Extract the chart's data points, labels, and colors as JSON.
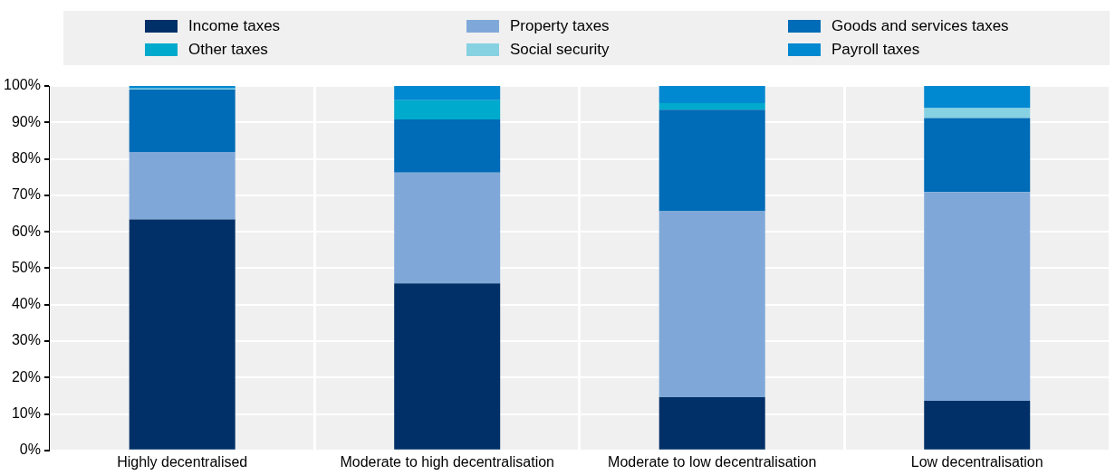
{
  "chart_data": {
    "type": "bar",
    "stacked": true,
    "categories": [
      "Highly decentralised",
      "Moderate to high decentralisation",
      "Moderate to low decentralisation",
      "Low decentralisation"
    ],
    "series": [
      {
        "name": "Income taxes",
        "color": "#003067",
        "values": [
          63.4,
          45.8,
          14.6,
          13.6
        ]
      },
      {
        "name": "Property taxes",
        "color": "#7fa8d9",
        "values": [
          18.5,
          30.4,
          51.0,
          57.3
        ]
      },
      {
        "name": "Goods and services taxes",
        "color": "#006bb6",
        "values": [
          17.1,
          14.6,
          27.9,
          20.3
        ]
      },
      {
        "name": "Other taxes",
        "color": "#00aacc",
        "values": [
          0,
          5.3,
          1.8,
          0
        ]
      },
      {
        "name": "Social security",
        "color": "#86d1e2",
        "values": [
          0.3,
          0,
          0,
          2.7
        ]
      },
      {
        "name": "Payroll taxes",
        "color": "#0088d0",
        "values": [
          0.7,
          3.9,
          4.7,
          6.1
        ]
      }
    ],
    "ylim": [
      0,
      100
    ],
    "yticks": [
      {
        "value": 0,
        "label": "0%"
      },
      {
        "value": 10,
        "label": "10%"
      },
      {
        "value": 20,
        "label": "20%"
      },
      {
        "value": 30,
        "label": "30%"
      },
      {
        "value": 40,
        "label": "40%"
      },
      {
        "value": 50,
        "label": "50%"
      },
      {
        "value": 60,
        "label": "60%"
      },
      {
        "value": 70,
        "label": "70%"
      },
      {
        "value": 80,
        "label": "80%"
      },
      {
        "value": 90,
        "label": "90%"
      },
      {
        "value": 100,
        "label": "100%"
      }
    ],
    "grid": true,
    "legend": "top"
  }
}
